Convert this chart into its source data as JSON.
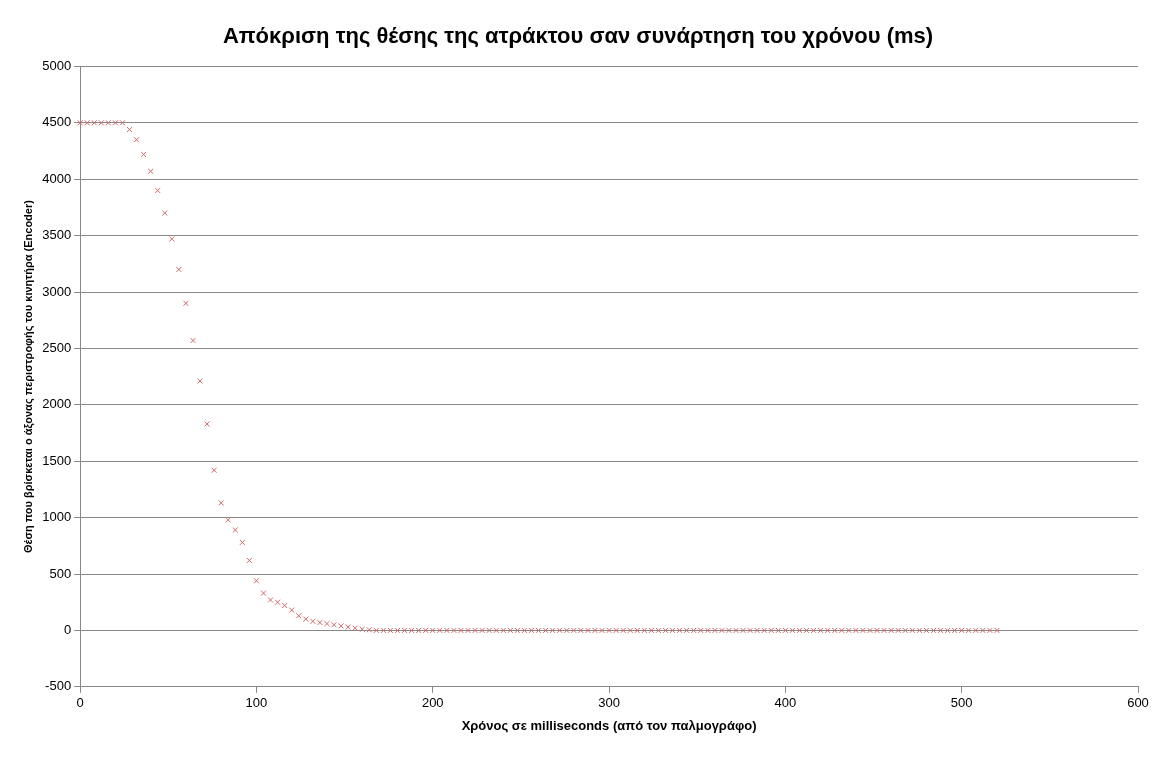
{
  "chart_data": {
    "type": "scatter",
    "title": "Απόκριση της θέσης της ατράκτου σαν συνάρτηση του χρόνου (ms)",
    "xlabel": "Χρόνος σε milliseconds (από τον παλμογράφο)",
    "ylabel": "Θέση που βρίσκεται ο άξονας περιστροφής του κινητήρα (Encoder)",
    "x": [
      0,
      4,
      8,
      12,
      16,
      20,
      24,
      28,
      32,
      36,
      40,
      44,
      48,
      52,
      56,
      60,
      64,
      68,
      72,
      76,
      80,
      84,
      88,
      92,
      96,
      100,
      104,
      108,
      112,
      116,
      120,
      124,
      128,
      132,
      136,
      140,
      144,
      148,
      152,
      156,
      160,
      164,
      168,
      172,
      176,
      180,
      184,
      188,
      192,
      196,
      200,
      204,
      208,
      212,
      216,
      220,
      224,
      228,
      232,
      236,
      240,
      244,
      248,
      252,
      256,
      260,
      264,
      268,
      272,
      276,
      280,
      284,
      288,
      292,
      296,
      300,
      304,
      308,
      312,
      316,
      320,
      324,
      328,
      332,
      336,
      340,
      344,
      348,
      352,
      356,
      360,
      364,
      368,
      372,
      376,
      380,
      384,
      388,
      392,
      396,
      400,
      404,
      408,
      412,
      416,
      420,
      424,
      428,
      432,
      436,
      440,
      444,
      448,
      452,
      456,
      460,
      464,
      468,
      472,
      476,
      480,
      484,
      488,
      492,
      496,
      500,
      504,
      508,
      512,
      516,
      520
    ],
    "series": [
      {
        "color": "#d06a6a",
        "values": [
          4500,
          4500,
          4500,
          4500,
          4500,
          4500,
          4500,
          4440,
          4350,
          4220,
          4070,
          3900,
          3700,
          3470,
          3200,
          2900,
          2570,
          2210,
          1830,
          1420,
          1130,
          980,
          890,
          780,
          620,
          440,
          330,
          270,
          250,
          220,
          180,
          130,
          100,
          80,
          70,
          60,
          50,
          40,
          30,
          20,
          10,
          5,
          0,
          0,
          0,
          0,
          0,
          0,
          0,
          0,
          0,
          0,
          0,
          0,
          0,
          0,
          0,
          0,
          0,
          0,
          0,
          0,
          0,
          0,
          0,
          0,
          0,
          0,
          0,
          0,
          0,
          0,
          0,
          0,
          0,
          0,
          0,
          0,
          0,
          0,
          0,
          0,
          0,
          0,
          0,
          0,
          0,
          0,
          0,
          0,
          0,
          0,
          0,
          0,
          0,
          0,
          0,
          0,
          0,
          0,
          0,
          0,
          0,
          0,
          0,
          0,
          0,
          0,
          0,
          0,
          0,
          0,
          0,
          0,
          0,
          0,
          0,
          0,
          0,
          0,
          0,
          0,
          0,
          0,
          0,
          0,
          0,
          0,
          0,
          0,
          0
        ]
      }
    ],
    "xlim": [
      0,
      600
    ],
    "xticks": [
      0,
      100,
      200,
      300,
      400,
      500,
      600
    ],
    "ylim": [
      -500,
      5000
    ],
    "yticks": [
      -500,
      0,
      500,
      1000,
      1500,
      2000,
      2500,
      3000,
      3500,
      4000,
      4500,
      5000
    ],
    "grid": "y",
    "legend": false,
    "marker": "cross"
  }
}
